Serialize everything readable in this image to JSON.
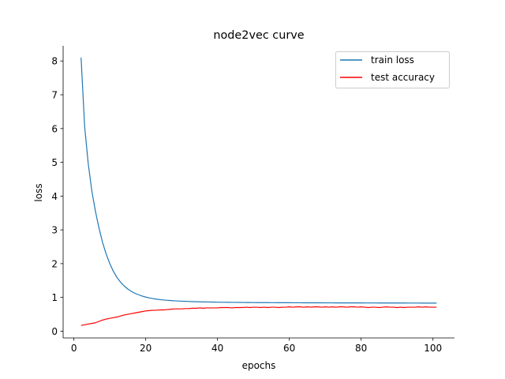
{
  "chart_data": {
    "type": "line",
    "title": "node2vec curve",
    "xlabel": "epochs",
    "ylabel": "loss",
    "xlim": [
      -3,
      106
    ],
    "ylim": [
      -0.2,
      8.45
    ],
    "xticks": [
      0,
      20,
      40,
      60,
      80,
      100
    ],
    "yticks": [
      0,
      1,
      2,
      3,
      4,
      5,
      6,
      7,
      8
    ],
    "legend": "top-right",
    "grid": false,
    "x": [
      2,
      3,
      4,
      5,
      6,
      7,
      8,
      9,
      10,
      11,
      12,
      13,
      14,
      15,
      16,
      17,
      18,
      19,
      20,
      21,
      22,
      23,
      24,
      25,
      26,
      27,
      28,
      29,
      30,
      31,
      32,
      33,
      34,
      35,
      36,
      37,
      38,
      39,
      40,
      41,
      42,
      43,
      44,
      45,
      46,
      47,
      48,
      49,
      50,
      51,
      52,
      53,
      54,
      55,
      56,
      57,
      58,
      59,
      60,
      61,
      62,
      63,
      64,
      65,
      66,
      67,
      68,
      69,
      70,
      71,
      72,
      73,
      74,
      75,
      76,
      77,
      78,
      79,
      80,
      81,
      82,
      83,
      84,
      85,
      86,
      87,
      88,
      89,
      90,
      91,
      92,
      93,
      94,
      95,
      96,
      97,
      98,
      99,
      100,
      101
    ],
    "series": [
      {
        "name": "train loss",
        "color": "#1f77b4",
        "values": [
          8.1,
          6.05,
          4.95,
          4.15,
          3.55,
          3.05,
          2.62,
          2.28,
          2.0,
          1.77,
          1.59,
          1.45,
          1.34,
          1.25,
          1.18,
          1.12,
          1.08,
          1.04,
          1.01,
          0.985,
          0.965,
          0.948,
          0.935,
          0.924,
          0.915,
          0.907,
          0.9,
          0.894,
          0.889,
          0.884,
          0.88,
          0.876,
          0.873,
          0.87,
          0.867,
          0.865,
          0.863,
          0.861,
          0.859,
          0.857,
          0.856,
          0.855,
          0.854,
          0.853,
          0.852,
          0.851,
          0.85,
          0.849,
          0.848,
          0.847,
          0.847,
          0.846,
          0.846,
          0.845,
          0.845,
          0.844,
          0.844,
          0.843,
          0.843,
          0.842,
          0.842,
          0.842,
          0.841,
          0.841,
          0.841,
          0.84,
          0.84,
          0.84,
          0.839,
          0.839,
          0.839,
          0.838,
          0.838,
          0.838,
          0.838,
          0.837,
          0.837,
          0.837,
          0.837,
          0.836,
          0.836,
          0.836,
          0.836,
          0.835,
          0.835,
          0.835,
          0.835,
          0.834,
          0.834,
          0.834,
          0.834,
          0.833,
          0.833,
          0.833,
          0.833,
          0.832,
          0.832,
          0.832,
          0.832,
          0.832
        ]
      },
      {
        "name": "test accuracy",
        "color": "#ff0000",
        "values": [
          0.17,
          0.19,
          0.21,
          0.23,
          0.25,
          0.29,
          0.33,
          0.36,
          0.38,
          0.4,
          0.42,
          0.45,
          0.48,
          0.5,
          0.52,
          0.54,
          0.56,
          0.58,
          0.6,
          0.61,
          0.62,
          0.62,
          0.63,
          0.63,
          0.64,
          0.65,
          0.66,
          0.66,
          0.66,
          0.67,
          0.67,
          0.68,
          0.68,
          0.69,
          0.68,
          0.69,
          0.69,
          0.69,
          0.69,
          0.7,
          0.7,
          0.7,
          0.69,
          0.7,
          0.7,
          0.7,
          0.71,
          0.7,
          0.71,
          0.71,
          0.7,
          0.71,
          0.7,
          0.71,
          0.71,
          0.7,
          0.71,
          0.71,
          0.72,
          0.71,
          0.72,
          0.72,
          0.71,
          0.72,
          0.71,
          0.72,
          0.72,
          0.71,
          0.72,
          0.71,
          0.72,
          0.71,
          0.72,
          0.72,
          0.71,
          0.72,
          0.72,
          0.71,
          0.72,
          0.71,
          0.7,
          0.71,
          0.71,
          0.7,
          0.71,
          0.72,
          0.71,
          0.71,
          0.7,
          0.71,
          0.7,
          0.71,
          0.71,
          0.71,
          0.72,
          0.71,
          0.72,
          0.71,
          0.71,
          0.71
        ]
      }
    ]
  }
}
